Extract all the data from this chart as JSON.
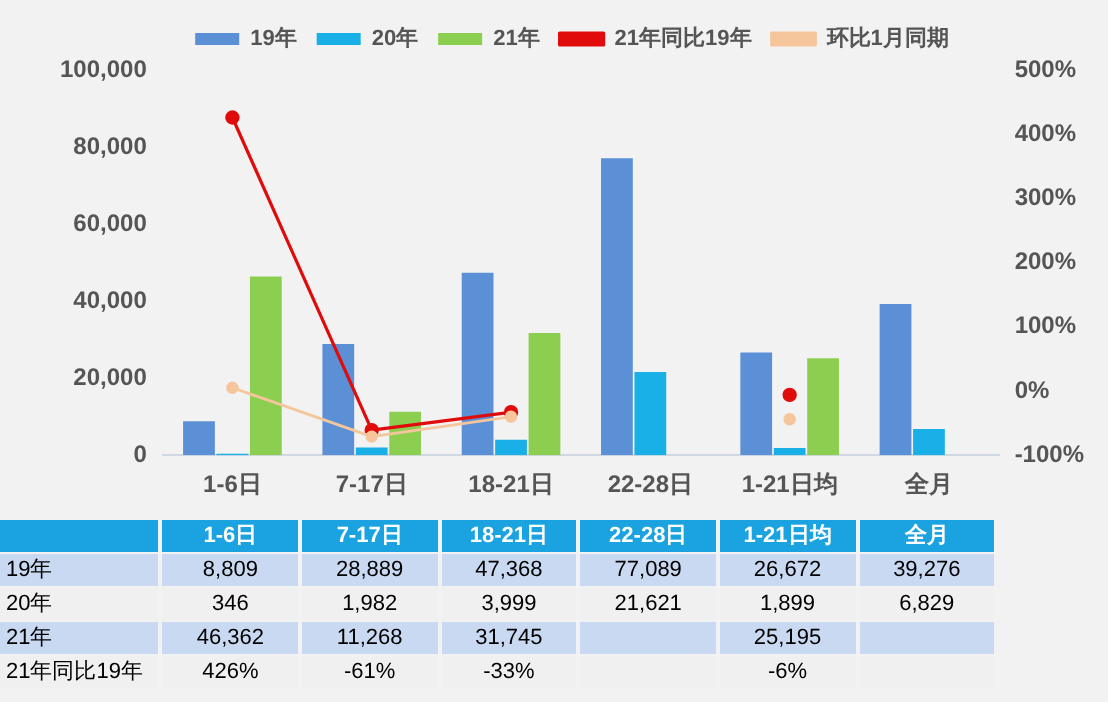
{
  "chart_data": {
    "type": "bar",
    "categories": [
      "1-6日",
      "7-17日",
      "18-21日",
      "22-28日",
      "1-21日均",
      "全月"
    ],
    "series": [
      {
        "name": "19年",
        "color": "#5b8fd6",
        "values": [
          8809,
          28889,
          47368,
          77089,
          26672,
          39276
        ],
        "value_labels": [
          "8,809",
          "28,889",
          "47,368",
          "77,089",
          "26,672",
          "39,276"
        ]
      },
      {
        "name": "20年",
        "color": "#19b0e8",
        "values": [
          346,
          1982,
          3999,
          21621,
          1899,
          6829
        ],
        "value_labels": [
          "346",
          "1,982",
          "3,999",
          "21,621",
          "1,899",
          "6,829"
        ]
      },
      {
        "name": "21年",
        "color": "#8ccf50",
        "values": [
          46362,
          11268,
          31745,
          null,
          25195,
          null
        ],
        "value_labels": [
          "46,362",
          "11,268",
          "31,745",
          null,
          "25,195",
          null
        ]
      },
      {
        "name": "21年同比19年",
        "type": "line",
        "axis": "y2",
        "color": "#e00b0b",
        "values": [
          426,
          -61,
          -33,
          null,
          -6,
          null
        ],
        "value_labels": [
          "426%",
          "-61%",
          "-33%",
          null,
          "-6%",
          null
        ]
      },
      {
        "name": "环比1月同期",
        "type": "line",
        "axis": "y2",
        "color": "#f5c69c",
        "values": [
          5,
          -71,
          -40,
          null,
          -44,
          null
        ]
      }
    ],
    "ylim": [
      0,
      100000
    ],
    "yticks": [
      {
        "value": 0,
        "label": "0"
      },
      {
        "value": 20000,
        "label": "20,000"
      },
      {
        "value": 40000,
        "label": "40,000"
      },
      {
        "value": 60000,
        "label": "60,000"
      },
      {
        "value": 80000,
        "label": "80,000"
      },
      {
        "value": 100000,
        "label": "100,000"
      }
    ],
    "y2lim": [
      -100,
      500
    ],
    "y2ticks": [
      {
        "value": -100,
        "label": "-100%"
      },
      {
        "value": 0,
        "label": "0%"
      },
      {
        "value": 100,
        "label": "100%"
      },
      {
        "value": 200,
        "label": "200%"
      },
      {
        "value": 300,
        "label": "300%"
      },
      {
        "value": 400,
        "label": "400%"
      },
      {
        "value": 500,
        "label": "500%"
      }
    ],
    "grid": false,
    "legend": "top",
    "marker": "circle",
    "line_style": "solid"
  }
}
